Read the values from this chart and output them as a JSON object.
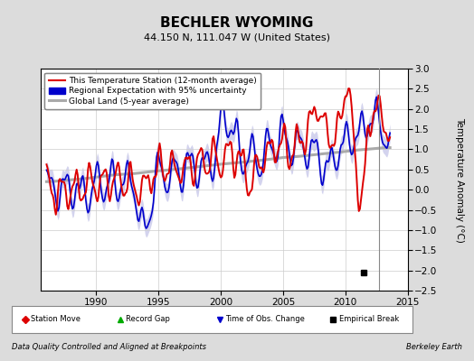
{
  "title": "BECHLER WYOMING",
  "subtitle": "44.150 N, 111.047 W (United States)",
  "ylabel": "Temperature Anomaly (°C)",
  "xlabel_left": "Data Quality Controlled and Aligned at Breakpoints",
  "xlabel_right": "Berkeley Earth",
  "xlim": [
    1985.5,
    2015.0
  ],
  "ylim": [
    -2.5,
    3.0
  ],
  "yticks": [
    -2.5,
    -2,
    -1.5,
    -1,
    -0.5,
    0,
    0.5,
    1,
    1.5,
    2,
    2.5,
    3
  ],
  "xticks": [
    1990,
    1995,
    2000,
    2005,
    2010,
    2015
  ],
  "vline_x": 2012.7,
  "empirical_break_x": 2011.5,
  "empirical_break_y": -2.05,
  "background_color": "#dcdcdc",
  "plot_background": "#ffffff",
  "red_line_color": "#dd0000",
  "blue_line_color": "#0000cc",
  "blue_fill_color": "#b0b0e0",
  "gray_line_color": "#aaaaaa",
  "grid_color": "#cccccc",
  "legend_items": [
    "This Temperature Station (12-month average)",
    "Regional Expectation with 95% uncertainty",
    "Global Land (5-year average)"
  ],
  "bottom_legend": [
    {
      "marker": "D",
      "color": "#dd0000",
      "label": "Station Move"
    },
    {
      "marker": "^",
      "color": "#00aa00",
      "label": "Record Gap"
    },
    {
      "marker": "v",
      "color": "#0000cc",
      "label": "Time of Obs. Change"
    },
    {
      "marker": "s",
      "color": "#000000",
      "label": "Empirical Break"
    }
  ]
}
